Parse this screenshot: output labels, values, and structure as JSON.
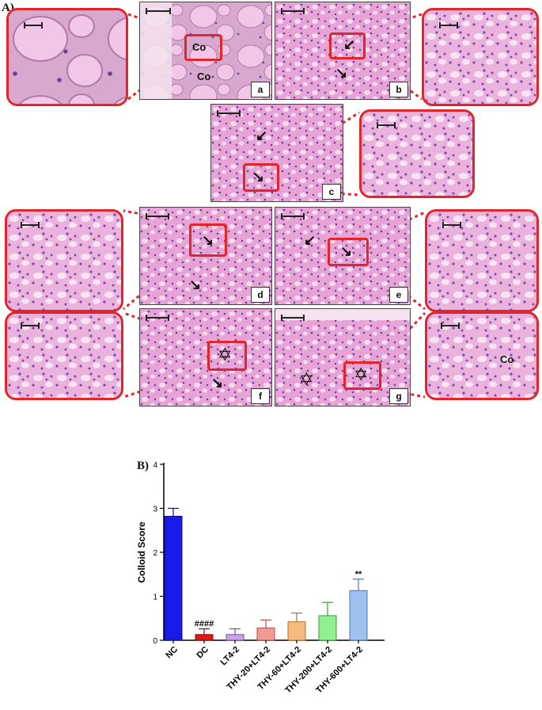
{
  "figure": {
    "panel_A_label": "A)",
    "panel_B_label": "B)",
    "micrographs": [
      {
        "letter": "a",
        "marks": [
          "Co",
          "Co"
        ]
      },
      {
        "letter": "b",
        "marks": []
      },
      {
        "letter": "c",
        "marks": []
      },
      {
        "letter": "d",
        "marks": []
      },
      {
        "letter": "e",
        "marks": []
      },
      {
        "letter": "f",
        "marks": []
      },
      {
        "letter": "g",
        "marks": []
      }
    ],
    "zoom_marks": {
      "g": "Co"
    },
    "colors": {
      "highlight": "#e0262b",
      "tissue_pink": "#e7a3d6",
      "tissue_light": "#f3d3ec",
      "nuclei": "#6b3f9a"
    }
  },
  "chart_data": {
    "type": "bar",
    "ylabel": "Colloid Score",
    "ylim": [
      0,
      4
    ],
    "yticks": [
      0,
      1,
      2,
      3,
      4
    ],
    "categories": [
      "NC",
      "DC",
      "LT4-2",
      "THY-20+LT4-2",
      "THY-60+LT4-2",
      "THY-200+LT4-2",
      "THY-600+LT4-2"
    ],
    "values": [
      2.82,
      0.13,
      0.13,
      0.28,
      0.42,
      0.56,
      1.13
    ],
    "errors": [
      0.18,
      0.13,
      0.13,
      0.18,
      0.2,
      0.3,
      0.26
    ],
    "annotations": [
      "",
      "####",
      "",
      "",
      "",
      "",
      "**"
    ],
    "colors": [
      "#1a1ae6",
      "#e01818",
      "#c9a3e6",
      "#f29a94",
      "#f5bb7e",
      "#8ff08f",
      "#9ec2f0"
    ],
    "edge_colors": [
      "#0a0a8a",
      "#8a0a0a",
      "#7a4fa0",
      "#b04e4a",
      "#b07030",
      "#3f9a3f",
      "#4a78b0"
    ]
  }
}
